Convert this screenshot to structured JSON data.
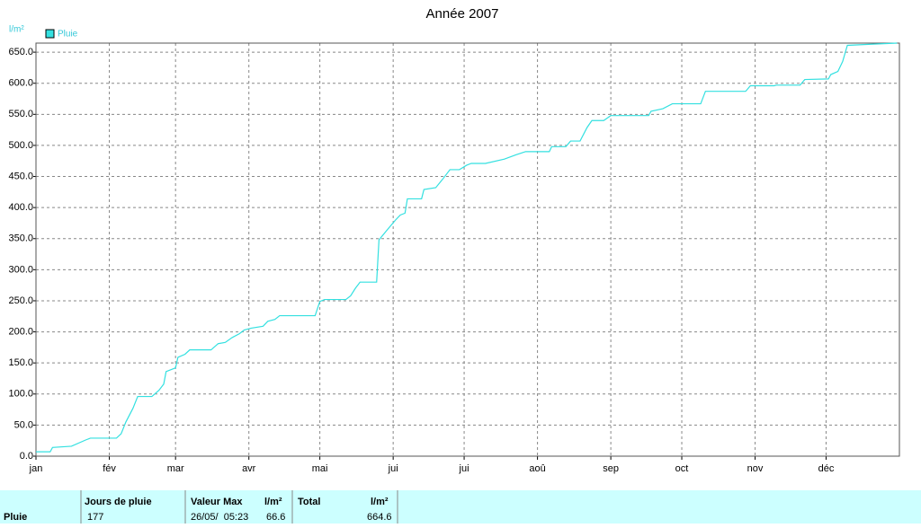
{
  "chart_data": {
    "type": "line",
    "title": "Année 2007",
    "y_label": "l/m²",
    "x": [
      0,
      6,
      7,
      15,
      21,
      23,
      34,
      36,
      38,
      41,
      43,
      49,
      52,
      54,
      55,
      59,
      60,
      63,
      65,
      74,
      77,
      80,
      83,
      86,
      88,
      91,
      96,
      98,
      101,
      103,
      118,
      120,
      122,
      131,
      133,
      135,
      137,
      144,
      145,
      148,
      150,
      152,
      154,
      156,
      157,
      163,
      164,
      169,
      172,
      175,
      179,
      182,
      184,
      190,
      198,
      203,
      207,
      217,
      218,
      224,
      226,
      230,
      233,
      235,
      240,
      243,
      259,
      260,
      265,
      269,
      281,
      283,
      300,
      302,
      312,
      313,
      323,
      325,
      335,
      336,
      339,
      341,
      343,
      354,
      364
    ],
    "series": [
      {
        "name": "Pluie",
        "color": "#33e0e0",
        "values": [
          7,
          7,
          14,
          16,
          26,
          29,
          29,
          36,
          55,
          77,
          96,
          96,
          106,
          116,
          136,
          142,
          159,
          164,
          171,
          171,
          181,
          183,
          191,
          197,
          203,
          206,
          209,
          217,
          220,
          226,
          226,
          249,
          252,
          252,
          258,
          270,
          280,
          280,
          348,
          362,
          371,
          380,
          388,
          391,
          414,
          414,
          429,
          432,
          446,
          461,
          461,
          468,
          471,
          471,
          478,
          485,
          490,
          490,
          498,
          498,
          507,
          507,
          529,
          540,
          540,
          548,
          548,
          555,
          559,
          567,
          567,
          587,
          587,
          596,
          596,
          597,
          597,
          606,
          607,
          614,
          619,
          635,
          661,
          663,
          664.6
        ]
      }
    ],
    "xlim": [
      0,
      365
    ],
    "xticks": [
      {
        "value": 0,
        "label": "jan"
      },
      {
        "value": 31,
        "label": "fév"
      },
      {
        "value": 59,
        "label": "mar"
      },
      {
        "value": 90,
        "label": "avr"
      },
      {
        "value": 120,
        "label": "mai"
      },
      {
        "value": 151,
        "label": "jui"
      },
      {
        "value": 181,
        "label": "jui"
      },
      {
        "value": 212,
        "label": "aoû"
      },
      {
        "value": 243,
        "label": "sep"
      },
      {
        "value": 273,
        "label": "oct"
      },
      {
        "value": 304,
        "label": "nov"
      },
      {
        "value": 334,
        "label": "déc"
      }
    ],
    "ylim": [
      0,
      664.6
    ],
    "yticks": [
      {
        "value": 0,
        "label": "0.0"
      },
      {
        "value": 50,
        "label": "50.0"
      },
      {
        "value": 100,
        "label": "100.0"
      },
      {
        "value": 150,
        "label": "150.0"
      },
      {
        "value": 200,
        "label": "200.0"
      },
      {
        "value": 250,
        "label": "250.0"
      },
      {
        "value": 300,
        "label": "300.0"
      },
      {
        "value": 350,
        "label": "350.0"
      },
      {
        "value": 400,
        "label": "400.0"
      },
      {
        "value": 450,
        "label": "450.0"
      },
      {
        "value": 500,
        "label": "500.0"
      },
      {
        "value": 550,
        "label": "550.0"
      },
      {
        "value": 600,
        "label": "600.0"
      },
      {
        "value": 650,
        "label": "650.0"
      }
    ],
    "grid": true
  },
  "table": {
    "headers": [
      "Jours de pluie",
      "Valeur Max",
      "l/m²",
      "Total",
      "l/m²"
    ],
    "rows": [
      [
        "Pluie",
        177,
        "26/05/  05:23",
        66.6,
        664.6
      ]
    ]
  }
}
